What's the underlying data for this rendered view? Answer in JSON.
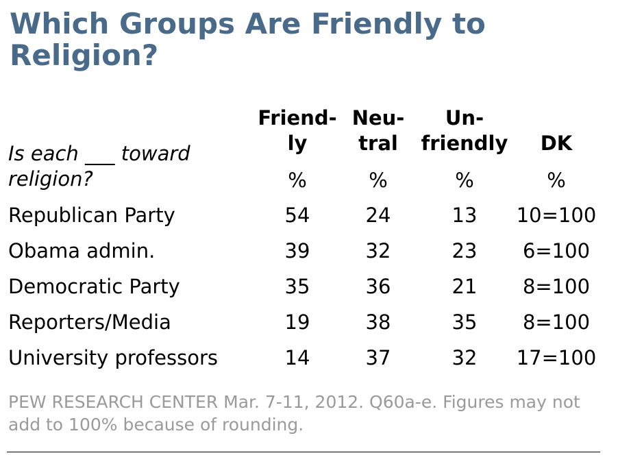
{
  "title": "Which Groups Are Friendly to Religion?",
  "question": "Is each ___ toward religion?",
  "columns": [
    {
      "header": "Friend-\nly",
      "unit": "%"
    },
    {
      "header": "Neu-\ntral",
      "unit": "%"
    },
    {
      "header": "Un-\nfriendly",
      "unit": "%"
    },
    {
      "header": "DK",
      "unit": "%"
    }
  ],
  "rows": [
    {
      "label": "Republican Party",
      "values": [
        "54",
        "24",
        "13",
        "10=100"
      ]
    },
    {
      "label": "Obama admin.",
      "values": [
        "39",
        "32",
        "23",
        "6=100"
      ]
    },
    {
      "label": "Democratic Party",
      "values": [
        "35",
        "36",
        "21",
        "8=100"
      ]
    },
    {
      "label": "Reporters/Media",
      "values": [
        "19",
        "38",
        "35",
        "8=100"
      ]
    },
    {
      "label": "University professors",
      "values": [
        "14",
        "37",
        "32",
        "17=100"
      ]
    }
  ],
  "note": "PEW RESEARCH CENTER Mar. 7-11, 2012. Q60a-e. Figures may not add to 100% because of rounding.",
  "colors": {
    "title": "#4a6a8a",
    "note": "#9a9a9a",
    "text": "#000000"
  },
  "chart_data": {
    "type": "table",
    "title": "Which Groups Are Friendly to Religion?",
    "question": "Is each ___ toward religion?",
    "column_headers": [
      "Friendly",
      "Neutral",
      "Unfriendly",
      "DK"
    ],
    "unit": "%",
    "categories": [
      "Republican Party",
      "Obama admin.",
      "Democratic Party",
      "Reporters/Media",
      "University professors"
    ],
    "series": [
      {
        "name": "Friendly",
        "values": [
          54,
          39,
          35,
          19,
          14
        ]
      },
      {
        "name": "Neutral",
        "values": [
          24,
          32,
          36,
          38,
          37
        ]
      },
      {
        "name": "Unfriendly",
        "values": [
          13,
          23,
          21,
          35,
          32
        ]
      },
      {
        "name": "DK",
        "values": [
          10,
          6,
          8,
          8,
          17
        ]
      }
    ],
    "row_totals": [
      100,
      100,
      100,
      100,
      100
    ]
  }
}
